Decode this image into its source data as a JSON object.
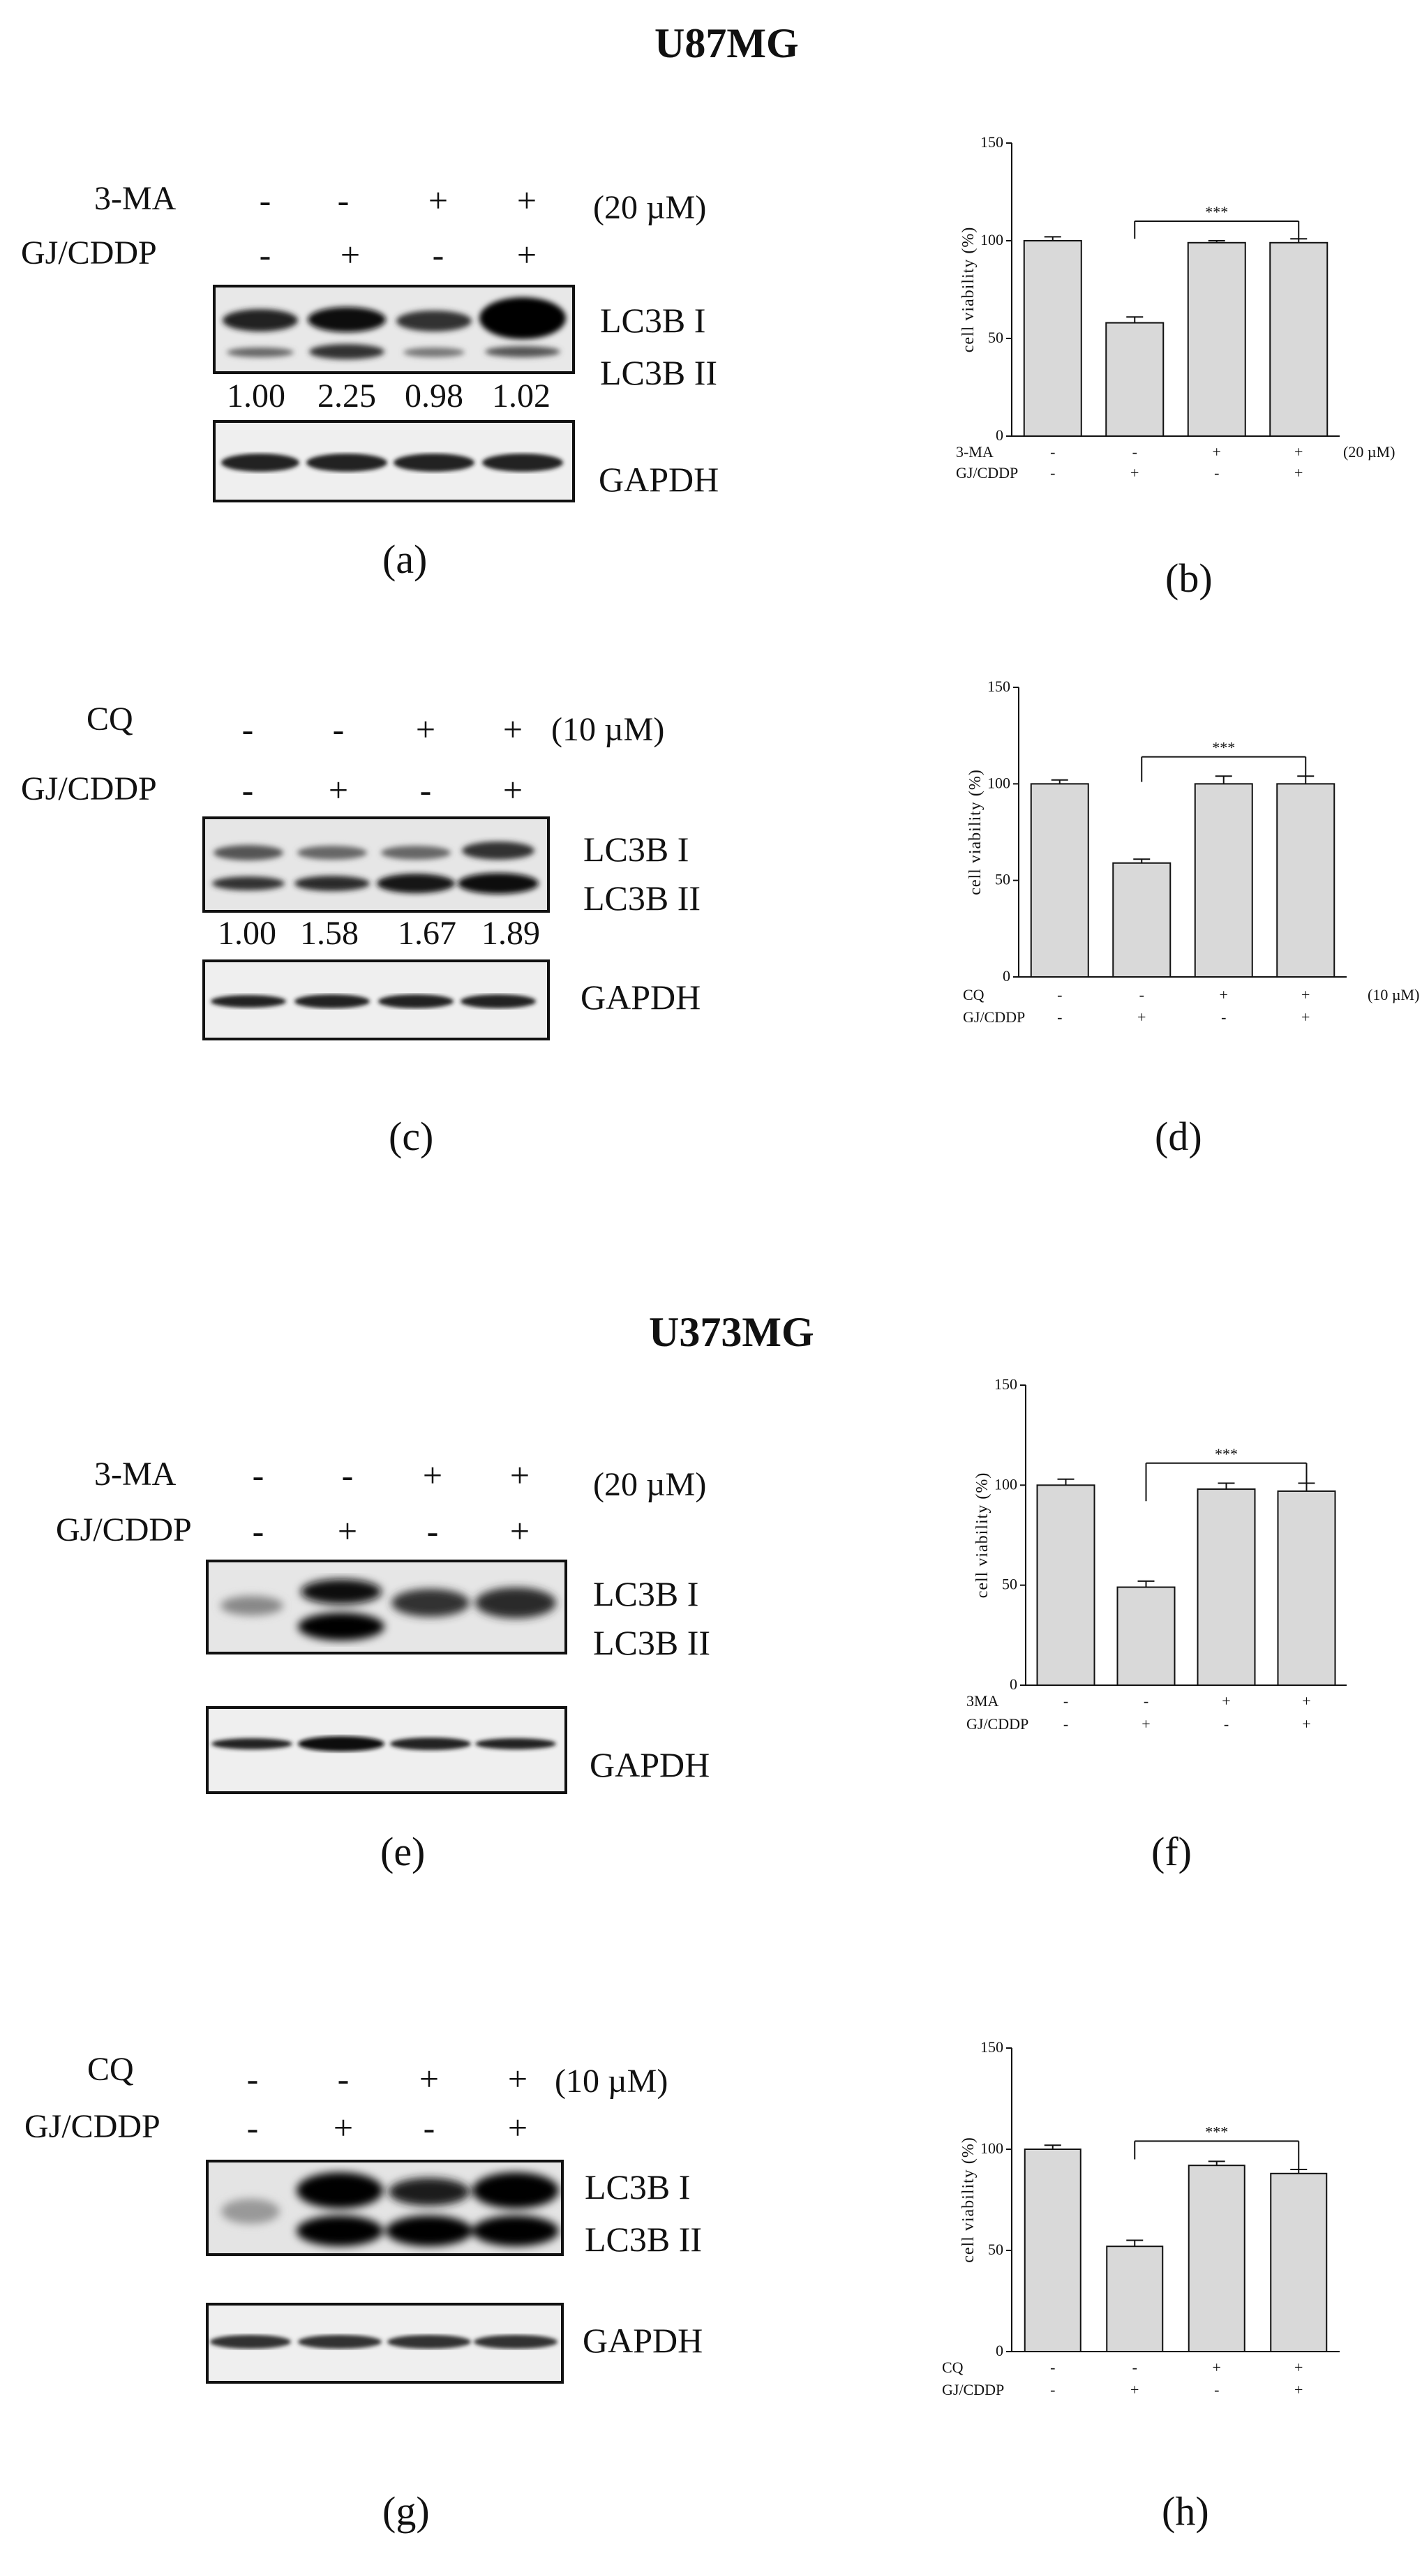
{
  "titles": {
    "top": "U87MG",
    "bottom": "U373MG"
  },
  "panel_labels": [
    "(a)",
    "(b)",
    "(c)",
    "(d)",
    "(e)",
    "(f)",
    "(g)",
    "(h)"
  ],
  "blots": [
    {
      "treatment1": "3-MA",
      "conc": "(20 µM)",
      "treatment2": "GJ/CDDP",
      "row1": [
        "-",
        "-",
        "+",
        "+"
      ],
      "row2": [
        "-",
        "+",
        "-",
        "+"
      ],
      "band_top": "LC3B I",
      "band_bottom": "LC3B II",
      "loading": "GAPDH",
      "quant": [
        "1.00",
        "2.25",
        "0.98",
        "1.02"
      ]
    },
    {
      "treatment1": "CQ",
      "conc": "(10 µM)",
      "treatment2": "GJ/CDDP",
      "row1": [
        "-",
        "-",
        "+",
        "+"
      ],
      "row2": [
        "-",
        "+",
        "-",
        "+"
      ],
      "band_top": "LC3B I",
      "band_bottom": "LC3B II",
      "loading": "GAPDH",
      "quant": [
        "1.00",
        "1.58",
        "1.67",
        "1.89"
      ]
    },
    {
      "treatment1": "3-MA",
      "conc": "(20 µM)",
      "treatment2": "GJ/CDDP",
      "row1": [
        "-",
        "-",
        "+",
        "+"
      ],
      "row2": [
        "-",
        "+",
        "-",
        "+"
      ],
      "band_top": "LC3B I",
      "band_bottom": "LC3B II",
      "loading": "GAPDH",
      "quant": []
    },
    {
      "treatment1": "CQ",
      "conc": "(10 µM)",
      "treatment2": "GJ/CDDP",
      "row1": [
        "-",
        "-",
        "+",
        "+"
      ],
      "row2": [
        "-",
        "+",
        "-",
        "+"
      ],
      "band_top": "LC3B I",
      "band_bottom": "LC3B II",
      "loading": "GAPDH",
      "quant": []
    }
  ],
  "chart_data": [
    {
      "type": "bar",
      "panel": "(b)",
      "ylabel": "cell viability (%)",
      "ylim": [
        0,
        150
      ],
      "yticks": [
        0,
        50,
        100,
        150
      ],
      "values": [
        100,
        58,
        99,
        99
      ],
      "errors": [
        2,
        3,
        1,
        2
      ],
      "significance": "***",
      "row_labels": [
        "3-MA",
        "GJ/CDDP"
      ],
      "conc": "(20 µM)",
      "row1": [
        "-",
        "-",
        "+",
        "+"
      ],
      "row2": [
        "-",
        "+",
        "-",
        "+"
      ]
    },
    {
      "type": "bar",
      "panel": "(d)",
      "ylabel": "cell viability (%)",
      "ylim": [
        0,
        150
      ],
      "yticks": [
        0,
        50,
        100,
        150
      ],
      "values": [
        100,
        59,
        100,
        100
      ],
      "errors": [
        2,
        2,
        4,
        4
      ],
      "significance": "***",
      "row_labels": [
        "CQ",
        "GJ/CDDP"
      ],
      "conc": "(10 µM)",
      "row1": [
        "-",
        "-",
        "+",
        "+"
      ],
      "row2": [
        "-",
        "+",
        "-",
        "+"
      ]
    },
    {
      "type": "bar",
      "panel": "(f)",
      "ylabel": "cell viability (%)",
      "ylim": [
        0,
        150
      ],
      "yticks": [
        0,
        50,
        100,
        150
      ],
      "values": [
        100,
        49,
        98,
        97
      ],
      "errors": [
        3,
        3,
        3,
        4
      ],
      "significance": "***",
      "row_labels": [
        "3MA",
        "GJ/CDDP"
      ],
      "conc": "",
      "row1": [
        "-",
        "-",
        "+",
        "+"
      ],
      "row2": [
        "-",
        "+",
        "-",
        "+"
      ]
    },
    {
      "type": "bar",
      "panel": "(h)",
      "ylabel": "cell viability (%)",
      "ylim": [
        0,
        150
      ],
      "yticks": [
        0,
        50,
        100,
        150
      ],
      "values": [
        100,
        52,
        92,
        88
      ],
      "errors": [
        2,
        3,
        2,
        2
      ],
      "significance": "***",
      "row_labels": [
        "CQ",
        "GJ/CDDP"
      ],
      "conc": "",
      "row1": [
        "-",
        "-",
        "+",
        "+"
      ],
      "row2": [
        "-",
        "+",
        "-",
        "+"
      ]
    }
  ]
}
